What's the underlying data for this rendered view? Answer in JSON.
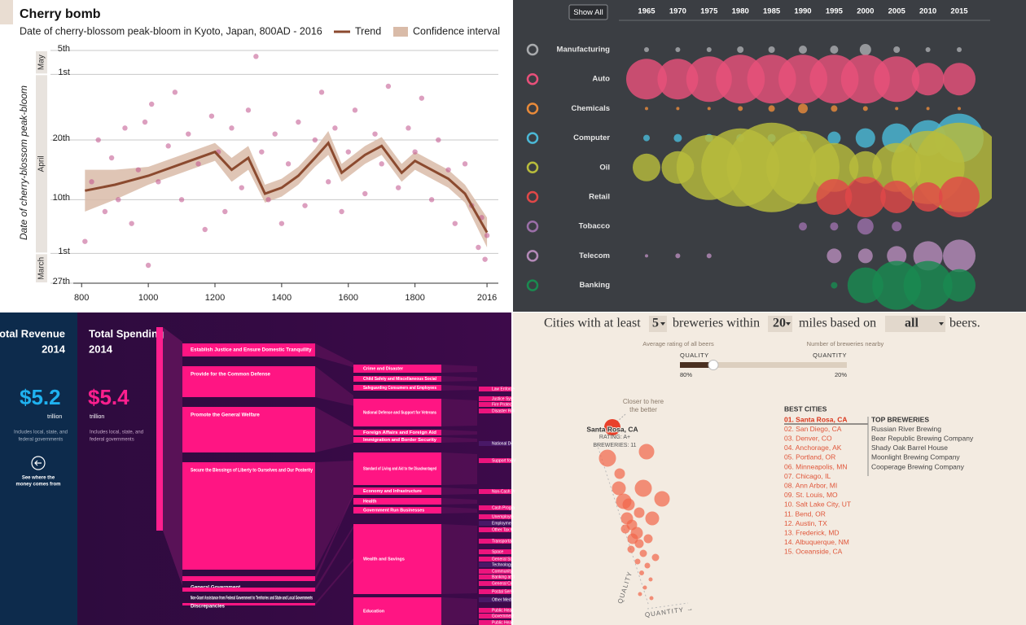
{
  "chart_data": [
    {
      "type": "scatter",
      "title": "Cherry bomb",
      "subtitle": "Date of cherry-blossom peak-bloom in Kyoto, Japan, 800AD - 2016",
      "y_label": "Date of cherry-blossom peak-bloom",
      "months": [
        {
          "label": "May",
          "start": 121,
          "end": 125
        },
        {
          "label": "April",
          "start": 91,
          "end": 121
        },
        {
          "label": "March",
          "start": 86,
          "end": 91
        }
      ],
      "xlim": [
        775,
        2050
      ],
      "xticks": [
        800,
        1000,
        1200,
        1400,
        1600,
        1800,
        2016
      ],
      "ylim": [
        86,
        125
      ],
      "yticks": [
        {
          "value": 125,
          "label": "5th"
        },
        {
          "value": 121,
          "label": "1st"
        },
        {
          "value": 110,
          "label": "20th"
        },
        {
          "value": 100,
          "label": "10th"
        },
        {
          "value": 91,
          "label": "1st"
        },
        {
          "value": 86,
          "label": "27th"
        }
      ],
      "grid": true,
      "points": {
        "color": "#c0508a",
        "x": [
          810,
          830,
          850,
          870,
          890,
          910,
          930,
          950,
          970,
          990,
          1000,
          1010,
          1030,
          1060,
          1080,
          1100,
          1120,
          1150,
          1170,
          1190,
          1210,
          1230,
          1250,
          1280,
          1300,
          1323,
          1340,
          1360,
          1380,
          1400,
          1420,
          1450,
          1470,
          1500,
          1520,
          1540,
          1560,
          1580,
          1600,
          1620,
          1650,
          1680,
          1700,
          1720,
          1750,
          1780,
          1800,
          1820,
          1850,
          1870,
          1900,
          1920,
          1950,
          1970,
          1990,
          2000,
          2010,
          2016
        ],
        "values": [
          93,
          103,
          110,
          98,
          107,
          100,
          112,
          96,
          105,
          113,
          89,
          116,
          103,
          109,
          118,
          100,
          111,
          106,
          95,
          114,
          108,
          98,
          112,
          102,
          115,
          124,
          108,
          100,
          111,
          96,
          106,
          113,
          99,
          110,
          118,
          103,
          112,
          98,
          108,
          115,
          101,
          111,
          106,
          119,
          102,
          112,
          108,
          117,
          100,
          110,
          105,
          96,
          106,
          99,
          92,
          97,
          90,
          94
        ]
      },
      "trend": {
        "name": "Trend",
        "color": "#8b4a2f",
        "x": [
          810,
          900,
          1000,
          1100,
          1200,
          1250,
          1300,
          1350,
          1400,
          1450,
          1500,
          1540,
          1580,
          1650,
          1700,
          1760,
          1800,
          1850,
          1900,
          1950,
          2016
        ],
        "values": [
          101.5,
          102.5,
          104,
          106,
          108,
          105,
          107,
          101,
          102,
          104,
          107,
          109.5,
          104.5,
          107.5,
          109,
          104.5,
          106.5,
          105,
          103.5,
          101,
          94.5
        ]
      },
      "interval": {
        "name": "Confidence interval",
        "color": "#d9bba8",
        "low": [
          98,
          100,
          102.5,
          104.5,
          106.5,
          103,
          105,
          99.5,
          100.5,
          102.5,
          105.5,
          107.5,
          103,
          106,
          107.5,
          103,
          105,
          103.5,
          102,
          99.5,
          92
        ],
        "high": [
          105,
          105,
          105.5,
          107.5,
          109.5,
          107,
          109,
          102.5,
          103.5,
          105.5,
          108.5,
          111.5,
          106,
          109,
          110.5,
          106,
          108,
          106.5,
          105,
          102.5,
          97
        ]
      }
    },
    {
      "type": "bubble",
      "button": "Show All",
      "categories": [
        1965,
        1970,
        1975,
        1980,
        1985,
        1990,
        1995,
        2000,
        2005,
        2010,
        2015
      ],
      "rows": [
        {
          "name": "Manufacturing",
          "color": "#a9abae",
          "values": [
            3,
            3,
            3,
            4,
            4,
            5,
            5,
            7,
            4,
            3,
            3
          ]
        },
        {
          "name": "Auto",
          "color": "#e8507a",
          "values": [
            25,
            25,
            28,
            30,
            30,
            30,
            30,
            30,
            28,
            20,
            20
          ]
        },
        {
          "name": "Chemicals",
          "color": "#e88a3a",
          "values": [
            2,
            2,
            2,
            3,
            4,
            6,
            4,
            3,
            2,
            2,
            2
          ]
        },
        {
          "name": "Computer",
          "color": "#4bb8d6",
          "values": [
            4,
            5,
            5,
            5,
            5,
            5,
            8,
            12,
            18,
            22,
            30
          ]
        },
        {
          "name": "Oil",
          "color": "#b8bc3c",
          "values": [
            17,
            20,
            40,
            48,
            55,
            45,
            30,
            20,
            30,
            45,
            55
          ]
        },
        {
          "name": "Retail",
          "color": "#e04848",
          "values": [
            0,
            0,
            0,
            0,
            0,
            0,
            22,
            25,
            20,
            18,
            25
          ]
        },
        {
          "name": "Tobacco",
          "color": "#9b6fa8",
          "values": [
            0,
            0,
            0,
            0,
            0,
            5,
            5,
            10,
            6,
            0,
            0
          ]
        },
        {
          "name": "Telecom",
          "color": "#b48ab8",
          "values": [
            2,
            3,
            3,
            0,
            0,
            0,
            9,
            9,
            12,
            18,
            20
          ]
        },
        {
          "name": "Banking",
          "color": "#1a8a50",
          "values": [
            0,
            0,
            0,
            0,
            0,
            0,
            4,
            22,
            30,
            30,
            20
          ]
        }
      ]
    }
  ],
  "spending": {
    "revenue": {
      "title": "Total Revenue",
      "year": "2014",
      "amount": "$5.2",
      "unit": "trillion",
      "note": [
        "Includes local, state, and",
        "federal governments"
      ],
      "link": [
        "See where the",
        "money comes from"
      ]
    },
    "total": {
      "title": "Total Spending",
      "year": "2014",
      "amount": "$5.4",
      "unit": "trillion",
      "note": [
        "Includes local, state, and",
        "federal governments"
      ]
    },
    "goals": [
      "Establish Justice and Ensure Domestic Tranquility",
      "Provide for the Common Defense",
      "Promote the General Welfare",
      "Secure the Blessings of Liberty to Ourselves and Our Posterity",
      "General Government",
      "Non-Grant Assistance from Federal Government to Territories and State and Local Governments",
      "Discrepancies"
    ],
    "functions": [
      "Crime and Disaster",
      "Child Safety and Miscellaneous Social",
      "Safeguarding Consumers and Employees",
      "National Defense and Support for Veterans",
      "Foreign Affairs and Foreign Aid",
      "Immigration and Border Security",
      "Standard of Living and Aid to the Disadvantaged",
      "Economy and Infrastructure",
      "Health",
      "Government Run Businesses",
      "Wealth and Savings",
      "Education"
    ],
    "programs": [
      "Law Enforce",
      "Justice Syst",
      "Fire Protect",
      "Disaster Reli",
      "National De",
      "Support for V",
      "Non-Cash Pr",
      "Cash Progra",
      "Unemploym",
      "Employmen",
      "Other Tax C",
      "Transportati",
      "Space",
      "General Sci",
      "Technology",
      "Community",
      "Banking and",
      "General Co",
      "Postal Servi",
      "Other Medi",
      "Public Healt",
      "Government",
      "Public Healt"
    ]
  },
  "breweries": {
    "headline": [
      "Cities with at least",
      "5",
      "breweries within",
      "20",
      "miles based on",
      "all",
      "beers."
    ],
    "slider": {
      "left_caption": "Average rating of all beers",
      "right_caption": "Number of breweries nearby",
      "left_label": "QUALITY",
      "right_label": "QUANTITY",
      "quality": {
        "value": 80,
        "label": "80%"
      },
      "quantity": {
        "value": 20,
        "label": "20%"
      }
    },
    "hint": [
      "Closer to here",
      "the better"
    ],
    "highlight": {
      "city": "Santa Rosa, CA",
      "rating": "RATING: A+",
      "count": "BREWERIES: 11"
    },
    "axis_quality": "QUALITY",
    "axis_quantity": "QUANTITY →",
    "best_title": "BEST CITIES",
    "best": [
      "01. Santa Rosa, CA",
      "02. San Diego, CA",
      "03. Denver, CO",
      "04. Anchorage, AK",
      "05. Portland, OR",
      "06. Minneapolis, MN",
      "07. Chicago, IL",
      "08. Ann Arbor, MI",
      "09. St. Louis, MO",
      "10. Salt Lake City, UT",
      "11. Bend, OR",
      "12. Austin, TX",
      "13. Frederick, MD",
      "14. Albuquerque, NM",
      "15. Oceanside, CA"
    ],
    "top_title": "TOP BREWERIES",
    "top": [
      "Russian River Brewing",
      "Bear Republic Brewing Company",
      "Shady Oak Barrel House",
      "Moonlight Brewing Company",
      "Cooperage Brewing Company"
    ]
  }
}
